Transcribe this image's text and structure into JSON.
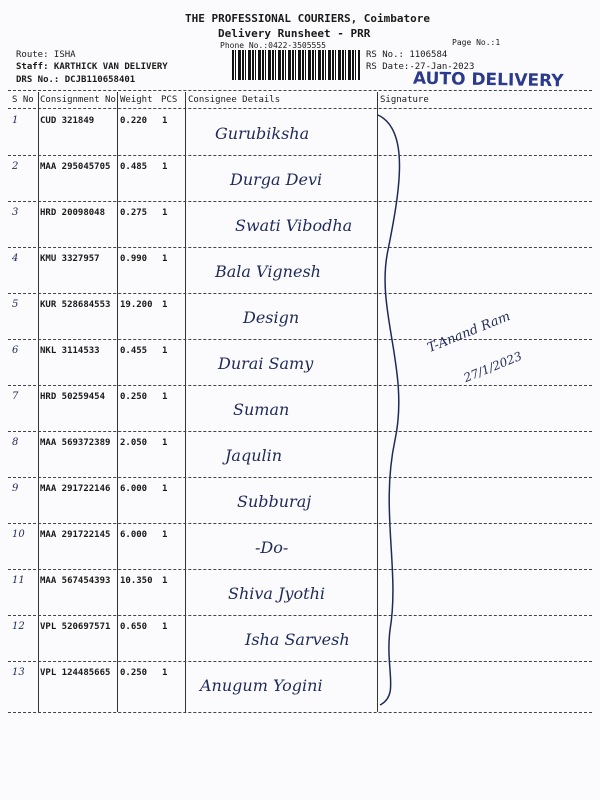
{
  "header": {
    "company": "THE PROFESSIONAL COURIERS, Coimbatore",
    "title": "Delivery Runsheet - PRR",
    "phone": "Phone No.:0422-3505555",
    "page_no": "Page No.:1",
    "route": "Route: ISHA",
    "staff": "Staff: KARTHICK VAN DELIVERY",
    "drs_no": "DRS No.: DCJB110658401",
    "rs_no": "RS No.: 1106584",
    "rs_date": "RS Date:-27-Jan-2023",
    "stamp": "AUTO DELIVERY"
  },
  "columns": [
    "S No",
    "Consignment No",
    "Weight",
    "PCS",
    "Consignee Details",
    "Signature"
  ],
  "rows": [
    {
      "sno": "1",
      "consignment": "CUD 321849",
      "weight": "0.220",
      "pcs": "1",
      "consignee": "Gurubiksha"
    },
    {
      "sno": "2",
      "consignment": "MAA 295045705",
      "weight": "0.485",
      "pcs": "1",
      "consignee": "Durga Devi"
    },
    {
      "sno": "3",
      "consignment": "HRD 20098048",
      "weight": "0.275",
      "pcs": "1",
      "consignee": "Swati Vibodha"
    },
    {
      "sno": "4",
      "consignment": "KMU 3327957",
      "weight": "0.990",
      "pcs": "1",
      "consignee": "Bala Vignesh"
    },
    {
      "sno": "5",
      "consignment": "KUR 528684553",
      "weight": "19.200",
      "pcs": "1",
      "consignee": "Design"
    },
    {
      "sno": "6",
      "consignment": "NKL 3114533",
      "weight": "0.455",
      "pcs": "1",
      "consignee": "Durai Samy"
    },
    {
      "sno": "7",
      "consignment": "HRD 50259454",
      "weight": "0.250",
      "pcs": "1",
      "consignee": "Suman"
    },
    {
      "sno": "8",
      "consignment": "MAA 569372389",
      "weight": "2.050",
      "pcs": "1",
      "consignee": "Jaqulin"
    },
    {
      "sno": "9",
      "consignment": "MAA 291722146",
      "weight": "6.000",
      "pcs": "1",
      "consignee": "Subburaj"
    },
    {
      "sno": "10",
      "consignment": "MAA 291722145",
      "weight": "6.000",
      "pcs": "1",
      "consignee": "-Do-"
    },
    {
      "sno": "11",
      "consignment": "MAA 567454393",
      "weight": "10.350",
      "pcs": "1",
      "consignee": "Shiva Jyothi"
    },
    {
      "sno": "12",
      "consignment": "VPL 520697571",
      "weight": "0.650",
      "pcs": "1",
      "consignee": "Isha Sarvesh"
    },
    {
      "sno": "13",
      "consignment": "VPL 124485665",
      "weight": "0.250",
      "pcs": "1",
      "consignee": "Anugum Yogini"
    }
  ],
  "signature": {
    "name": "T-Anand Ram",
    "date": "27/1/2023"
  }
}
